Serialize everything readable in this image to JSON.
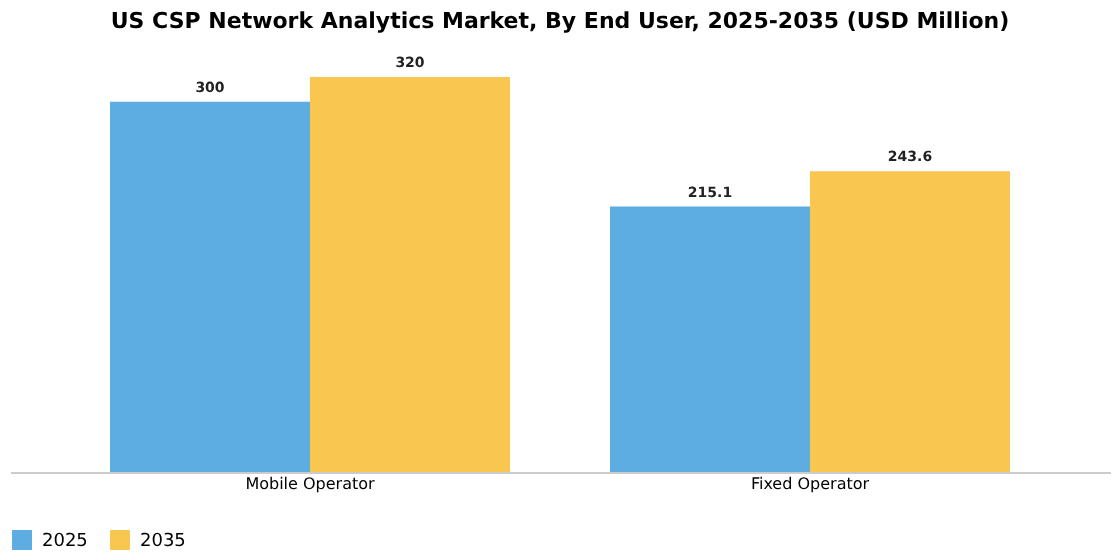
{
  "chart_data": {
    "type": "bar",
    "title": "US CSP Network Analytics Market, By End User, 2025-2035 (USD Million)",
    "categories": [
      "Mobile Operator",
      "Fixed Operator"
    ],
    "series": [
      {
        "name": "2025",
        "color": "#5dade2",
        "values": [
          300,
          215.1
        ]
      },
      {
        "name": "2035",
        "color": "#f9c74f",
        "values": [
          320,
          243.6
        ]
      }
    ],
    "data_labels": true,
    "legend": "bottom",
    "grid": false
  }
}
